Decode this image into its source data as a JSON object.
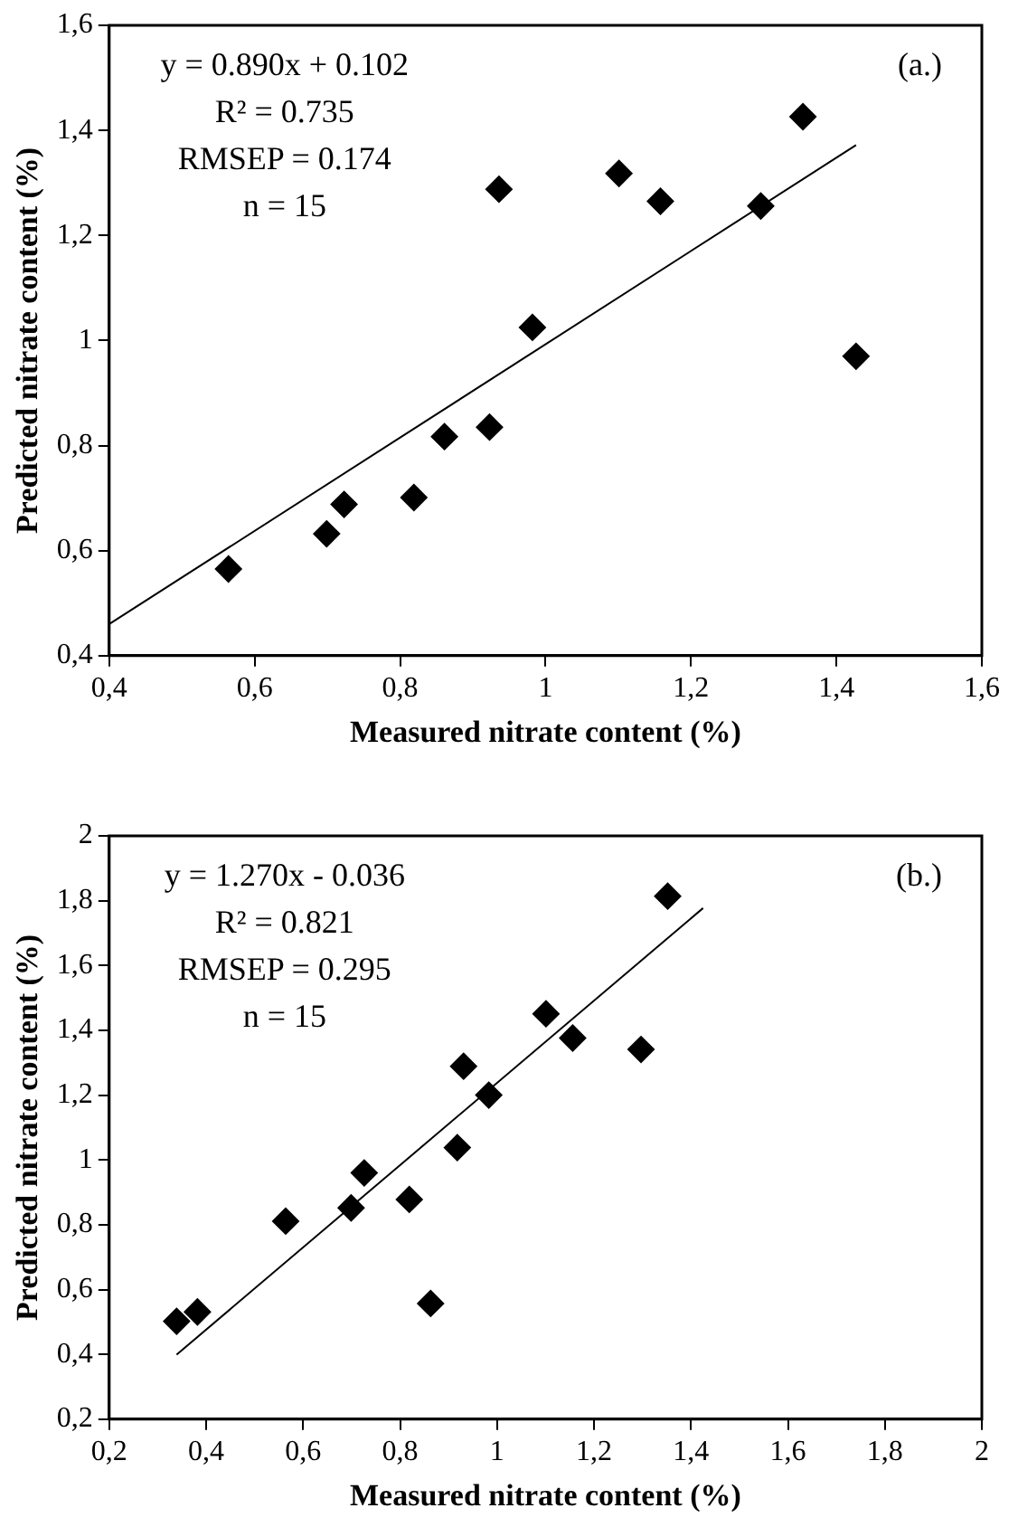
{
  "chart_data": [
    {
      "type": "scatter",
      "xlabel": "Measured nitrate content (%)",
      "ylabel": "Predicted nitrate content (%)",
      "annotations": [
        "y = 0.890x + 0.102",
        "R² = 0.735",
        "RMSEP = 0.174",
        "n = 15",
        "(a.)"
      ],
      "xlim": [
        0.4,
        1.6
      ],
      "ylim": [
        0.4,
        1.6
      ],
      "xticks": [
        {
          "value": 0.4,
          "label": "0,4"
        },
        {
          "value": 0.6,
          "label": "0,6"
        },
        {
          "value": 0.8,
          "label": "0,8"
        },
        {
          "value": 1,
          "label": "1"
        },
        {
          "value": 1.2,
          "label": "1,2"
        },
        {
          "value": 1.4,
          "label": "1,4"
        },
        {
          "value": 1.6,
          "label": "1,6"
        }
      ],
      "yticks": [
        {
          "value": 0.4,
          "label": "0,4"
        },
        {
          "value": 0.6,
          "label": "0,6"
        },
        {
          "value": 0.8,
          "label": "0,8"
        },
        {
          "value": 1,
          "label": "1"
        },
        {
          "value": 1.2,
          "label": "1,2"
        },
        {
          "value": 1.4,
          "label": "1,4"
        },
        {
          "value": 1.6,
          "label": "1,6"
        }
      ],
      "grid": false,
      "legend": false,
      "marker": "diamond",
      "series": [
        {
          "color": "#000000",
          "x": [
            0.564,
            0.699,
            0.723,
            0.819,
            0.861,
            0.923,
            0.936,
            0.982,
            1.101,
            1.158,
            1.296,
            1.354,
            1.427
          ],
          "values": [
            0.565,
            0.632,
            0.688,
            0.701,
            0.817,
            0.835,
            1.288,
            1.025,
            1.318,
            1.265,
            1.256,
            1.426,
            0.97
          ]
        },
        {
          "type": "line",
          "marker": "none",
          "color": "#000000",
          "x": [
            0.4,
            1.427
          ],
          "values": [
            0.46,
            1.372
          ]
        }
      ]
    },
    {
      "type": "scatter",
      "xlabel": "Measured nitrate content (%)",
      "ylabel": "Predicted nitrate content (%)",
      "annotations": [
        "y = 1.270x - 0.036",
        "R² = 0.821",
        "RMSEP = 0.295",
        "n = 15",
        "(b.)"
      ],
      "xlim": [
        0.2,
        2
      ],
      "ylim": [
        0.2,
        2
      ],
      "xticks": [
        {
          "value": 0.2,
          "label": "0,2"
        },
        {
          "value": 0.4,
          "label": "0,4"
        },
        {
          "value": 0.6,
          "label": "0,6"
        },
        {
          "value": 0.8,
          "label": "0,8"
        },
        1,
        {
          "value": 1.2,
          "label": "1,2"
        },
        {
          "value": 1.4,
          "label": "1,4"
        },
        {
          "value": 1.6,
          "label": "1,6"
        },
        {
          "value": 1.8,
          "label": "1,8"
        },
        2
      ],
      "yticks": [
        {
          "value": 0.2,
          "label": "0,2"
        },
        {
          "value": 0.4,
          "label": "0,4"
        },
        {
          "value": 0.6,
          "label": "0,6"
        },
        {
          "value": 0.8,
          "label": "0,8"
        },
        1,
        {
          "value": 1.2,
          "label": "1,2"
        },
        {
          "value": 1.4,
          "label": "1,4"
        },
        {
          "value": 1.6,
          "label": "1,6"
        },
        {
          "value": 1.8,
          "label": "1,8"
        },
        2
      ],
      "grid": false,
      "legend": false,
      "marker": "diamond",
      "series": [
        {
          "color": "#000000",
          "x": [
            0.339,
            0.382,
            0.564,
            0.699,
            0.726,
            0.819,
            0.863,
            0.918,
            0.931,
            0.983,
            1.101,
            1.156,
            1.297,
            1.352
          ],
          "values": [
            0.502,
            0.531,
            0.811,
            0.852,
            0.96,
            0.878,
            0.557,
            1.038,
            1.289,
            1.2,
            1.451,
            1.376,
            1.341,
            1.814
          ]
        },
        {
          "type": "line",
          "marker": "none",
          "color": "#000000",
          "x": [
            0.339,
            1.425
          ],
          "values": [
            0.399,
            1.777
          ]
        }
      ]
    }
  ]
}
